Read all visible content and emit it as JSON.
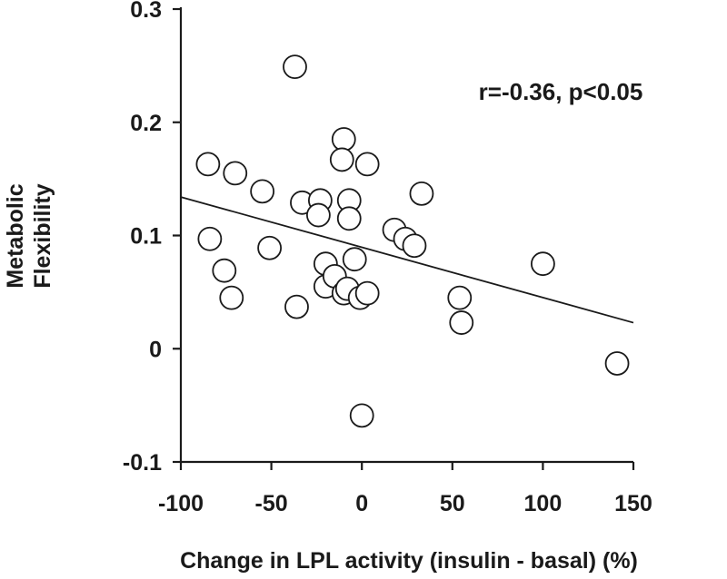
{
  "chart_data": {
    "type": "scatter",
    "title": "",
    "xlabel": "Change in LPL activity (insulin - basal) (%)",
    "ylabel_lines": [
      "Metabolic",
      "Flexibility"
    ],
    "xlim": [
      -100,
      150
    ],
    "ylim": [
      -0.1,
      0.3
    ],
    "x_ticks": [
      -100,
      -50,
      0,
      50,
      100,
      150
    ],
    "x_tick_labels": [
      "-100",
      "-50",
      "0",
      "50",
      "100",
      "150"
    ],
    "y_ticks": [
      -0.1,
      0,
      0.1,
      0.2,
      0.3
    ],
    "y_tick_labels": [
      "-0.1",
      "0",
      "0.1",
      "0.2",
      "0.3"
    ],
    "annotation": "r=-0.36, p<0.05",
    "grid": false,
    "fit_line": {
      "x": [
        -100,
        150
      ],
      "y": [
        0.134,
        0.023
      ]
    },
    "points": [
      {
        "x": -37,
        "y": 0.249
      },
      {
        "x": -85,
        "y": 0.163
      },
      {
        "x": -70,
        "y": 0.155
      },
      {
        "x": -55,
        "y": 0.139
      },
      {
        "x": -84,
        "y": 0.097
      },
      {
        "x": -51,
        "y": 0.089
      },
      {
        "x": -76,
        "y": 0.069
      },
      {
        "x": -72,
        "y": 0.045
      },
      {
        "x": -36,
        "y": 0.037
      },
      {
        "x": -33,
        "y": 0.129
      },
      {
        "x": -23,
        "y": 0.131
      },
      {
        "x": -24,
        "y": 0.118
      },
      {
        "x": -10,
        "y": 0.185
      },
      {
        "x": -11,
        "y": 0.167
      },
      {
        "x": 3,
        "y": 0.163
      },
      {
        "x": -7,
        "y": 0.131
      },
      {
        "x": -7,
        "y": 0.115
      },
      {
        "x": -20,
        "y": 0.075
      },
      {
        "x": -20,
        "y": 0.055
      },
      {
        "x": -15,
        "y": 0.064
      },
      {
        "x": -10,
        "y": 0.049
      },
      {
        "x": -8,
        "y": 0.053
      },
      {
        "x": -4,
        "y": 0.079
      },
      {
        "x": -1,
        "y": 0.045
      },
      {
        "x": 3,
        "y": 0.049
      },
      {
        "x": 0,
        "y": -0.059
      },
      {
        "x": 18,
        "y": 0.105
      },
      {
        "x": 24,
        "y": 0.097
      },
      {
        "x": 29,
        "y": 0.091
      },
      {
        "x": 33,
        "y": 0.137
      },
      {
        "x": 54,
        "y": 0.045
      },
      {
        "x": 55,
        "y": 0.023
      },
      {
        "x": 100,
        "y": 0.075
      },
      {
        "x": 141,
        "y": -0.013
      }
    ]
  }
}
